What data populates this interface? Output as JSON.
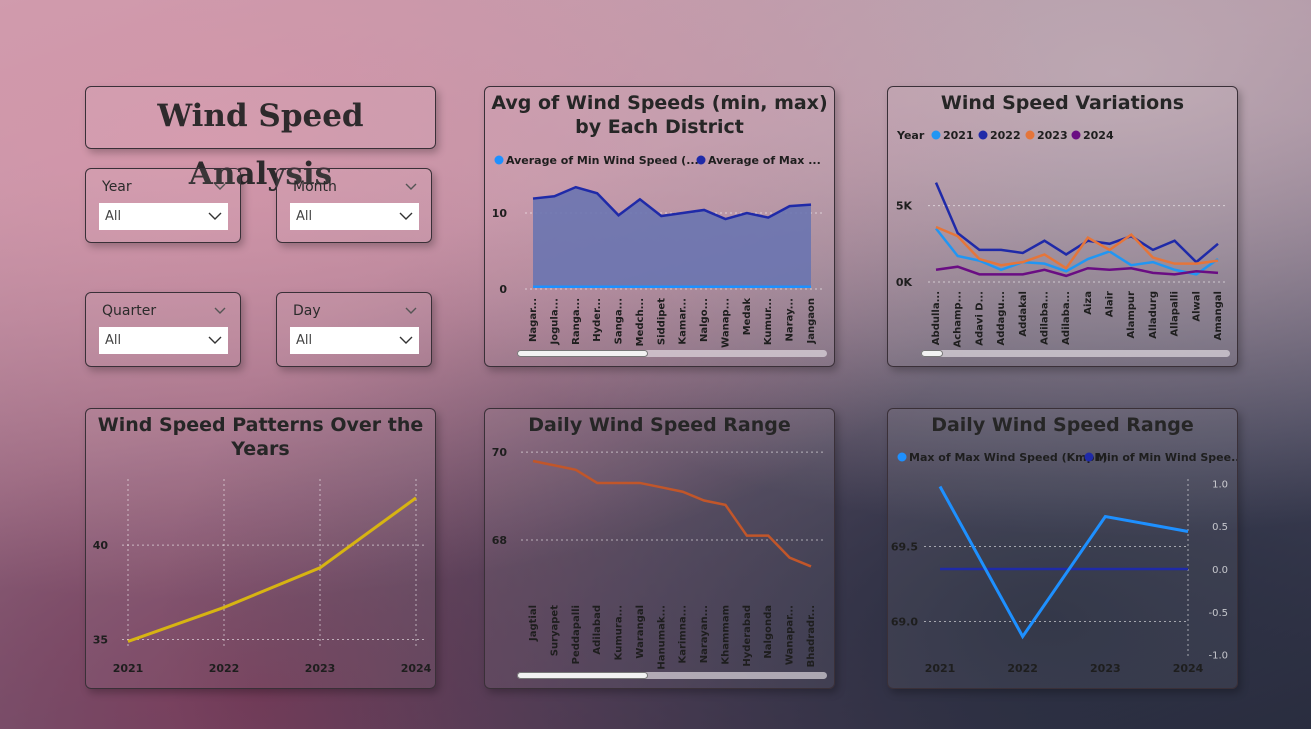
{
  "title": "Wind Speed Analysis",
  "slicers": [
    {
      "label": "Year",
      "value": "All"
    },
    {
      "label": "Month",
      "value": "All"
    },
    {
      "label": "Quarter",
      "value": "All"
    },
    {
      "label": "Day",
      "value": "All"
    }
  ],
  "colors": {
    "min_series": "#1e90ff",
    "max_series": "#1f2aa8",
    "area_fill": "#6a74b0",
    "y2021": "#2196f3",
    "y2022": "#1f2aa8",
    "y2023": "#e5753a",
    "y2024": "#6a0d83",
    "pattern_line": "#d7b412",
    "range_line": "#c1562a"
  },
  "chart_data": [
    {
      "type": "area",
      "title": "Avg of Wind Speeds (min, max) by Each District",
      "legend": [
        "Average of Min Wind Speed (...",
        "Average of Max ..."
      ],
      "categories": [
        "Nagar...",
        "Jogula...",
        "Ranga...",
        "Hyder...",
        "Sanga...",
        "Medch...",
        "Siddipet",
        "Kamar...",
        "Nalgo...",
        "Wanap...",
        "Medak",
        "Kumur...",
        "Naray...",
        "Jangaon"
      ],
      "series": [
        {
          "name": "Average of Min Wind Speed (...",
          "values": [
            0.3,
            0.3,
            0.3,
            0.3,
            0.3,
            0.3,
            0.3,
            0.3,
            0.3,
            0.3,
            0.3,
            0.3,
            0.3,
            0.3
          ]
        },
        {
          "name": "Average of Max ...",
          "values": [
            11.9,
            12.2,
            13.4,
            12.6,
            9.7,
            11.8,
            9.6,
            10.0,
            10.4,
            9.2,
            10.0,
            9.4,
            10.9,
            11.1
          ]
        }
      ],
      "yticks": [
        "0",
        "10"
      ],
      "ylim": [
        0,
        15
      ]
    },
    {
      "type": "line",
      "title": "Wind Speed Variations",
      "legend_title": "Year",
      "legend": [
        "2021",
        "2022",
        "2023",
        "2024"
      ],
      "categories": [
        "Abdulla...",
        "Achamp...",
        "Adavi D...",
        "Addagu...",
        "Addakal",
        "Adilaba...",
        "Adilaba...",
        "Aiza",
        "Alair",
        "Alampur",
        "Alladurg",
        "Allapalli",
        "Alwal",
        "Amangal"
      ],
      "series": [
        {
          "name": "2021",
          "values": [
            3500,
            1700,
            1400,
            800,
            1300,
            1200,
            700,
            1500,
            2000,
            1100,
            1300,
            800,
            500,
            1500
          ]
        },
        {
          "name": "2022",
          "values": [
            6500,
            3200,
            2100,
            2100,
            1900,
            2700,
            1800,
            2700,
            2500,
            3000,
            2100,
            2700,
            1300,
            2500
          ]
        },
        {
          "name": "2023",
          "values": [
            3600,
            3000,
            1500,
            1100,
            1300,
            1800,
            900,
            2900,
            2100,
            3100,
            1600,
            1200,
            1200,
            1400
          ]
        },
        {
          "name": "2024",
          "values": [
            800,
            1000,
            500,
            500,
            500,
            800,
            400,
            900,
            800,
            900,
            600,
            500,
            700,
            600
          ]
        }
      ],
      "yticks": [
        "0K",
        "5K"
      ],
      "ylim": [
        0,
        7000
      ]
    },
    {
      "type": "line",
      "title": "Wind Speed Patterns Over the Years",
      "categories": [
        "2021",
        "2022",
        "2023",
        "2024"
      ],
      "values": [
        34.9,
        36.7,
        38.8,
        42.5
      ],
      "yticks": [
        "35",
        "40"
      ],
      "ylim": [
        34.5,
        43.5
      ]
    },
    {
      "type": "line",
      "title": "Daily Wind Speed Range",
      "categories": [
        "Jagtial",
        "Suryapet",
        "Peddapalli",
        "Adilabad",
        "Kumura...",
        "Warangal",
        "Hanumak...",
        "Karimna...",
        "Narayan...",
        "Khammam",
        "Hyderabad",
        "Nalgonda",
        "Wanapar...",
        "Bhadradr..."
      ],
      "values": [
        69.8,
        69.7,
        69.6,
        69.3,
        69.3,
        69.3,
        69.2,
        69.1,
        68.9,
        68.8,
        68.1,
        68.1,
        67.6,
        67.4
      ],
      "yticks": [
        "68",
        "70"
      ],
      "ylim": [
        67.0,
        70.3
      ]
    },
    {
      "type": "line",
      "title": "Daily Wind Speed Range",
      "legend": [
        "Max of Max Wind Speed (Kmph)",
        "Min of Min Wind Spee..."
      ],
      "categories": [
        "2021",
        "2022",
        "2023",
        "2024"
      ],
      "series": [
        {
          "name": "Max of Max Wind Speed (Kmph)",
          "values": [
            69.9,
            68.9,
            69.7,
            69.6
          ]
        },
        {
          "name": "Min of Min Wind Spee...",
          "values": [
            0.0,
            0.0,
            0.0,
            0.0
          ]
        }
      ],
      "yticks": [
        "69.0",
        "69.5"
      ],
      "y2ticks": [
        "1.0",
        "0.5",
        "0.0",
        "-0.5",
        "-1.0"
      ],
      "ylim": [
        68.75,
        69.95
      ],
      "y2lim": [
        -1.05,
        1.05
      ]
    }
  ]
}
